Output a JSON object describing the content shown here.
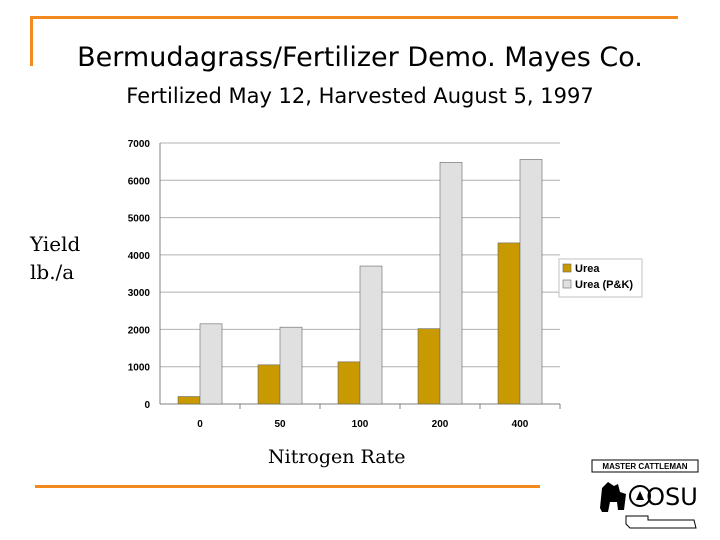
{
  "slide": {
    "title": "Bermudagrass/Fertilizer Demo.  Mayes Co.",
    "subtitle": "Fertilized May 12,  Harvested August 5, 1997",
    "ylabel_line1": "Yield",
    "ylabel_line2": "lb./a",
    "xlabel": "Nitrogen Rate"
  },
  "logo": {
    "top_text": "MASTER CATTLEMAN",
    "main_text": "OSU"
  },
  "colors": {
    "accent": "#f28a1e",
    "urea": "#c89a00",
    "urea_pk": "#e0e0e0"
  },
  "chart_data": {
    "type": "bar",
    "categories": [
      "0",
      "50",
      "100",
      "200",
      "400"
    ],
    "series": [
      {
        "name": "Urea",
        "values": [
          200,
          1050,
          1130,
          2020,
          4320
        ]
      },
      {
        "name": "Urea (P&K)",
        "values": [
          2150,
          2060,
          3700,
          6480,
          6560
        ]
      }
    ],
    "yticks": [
      "0",
      "1000",
      "2000",
      "3000",
      "4000",
      "5000",
      "6000",
      "7000"
    ],
    "ylim": [
      0,
      7000
    ],
    "grid": true,
    "legend": "right"
  }
}
